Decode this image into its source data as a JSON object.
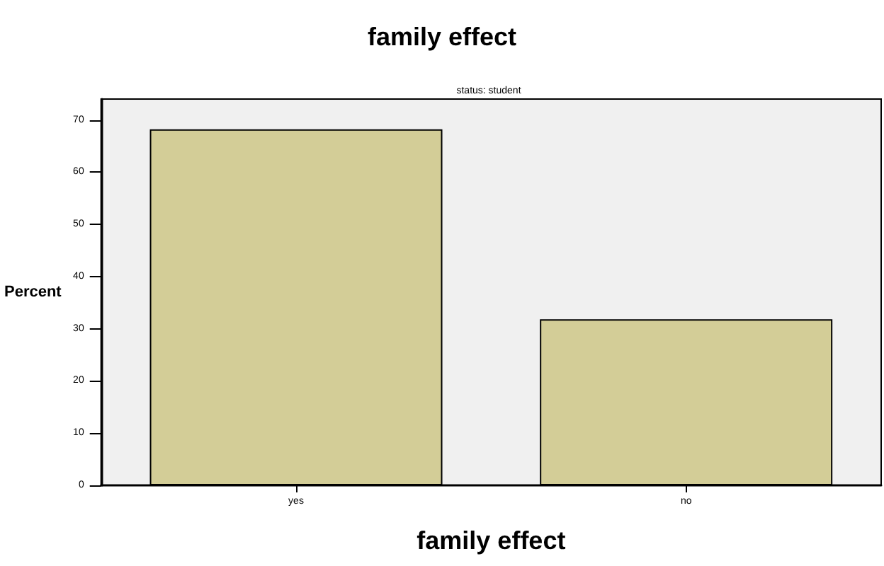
{
  "chart_data": {
    "type": "bar",
    "title": "family effect",
    "subtitle": "status: student",
    "xlabel": "family effect",
    "ylabel": "Percent",
    "categories": [
      "yes",
      "no"
    ],
    "values": [
      68.2,
      31.8
    ],
    "color": "#d3cd97",
    "ylim": [
      0,
      74
    ],
    "yticks": [
      0,
      10,
      20,
      30,
      40,
      50,
      60,
      70
    ],
    "grid": false
  }
}
